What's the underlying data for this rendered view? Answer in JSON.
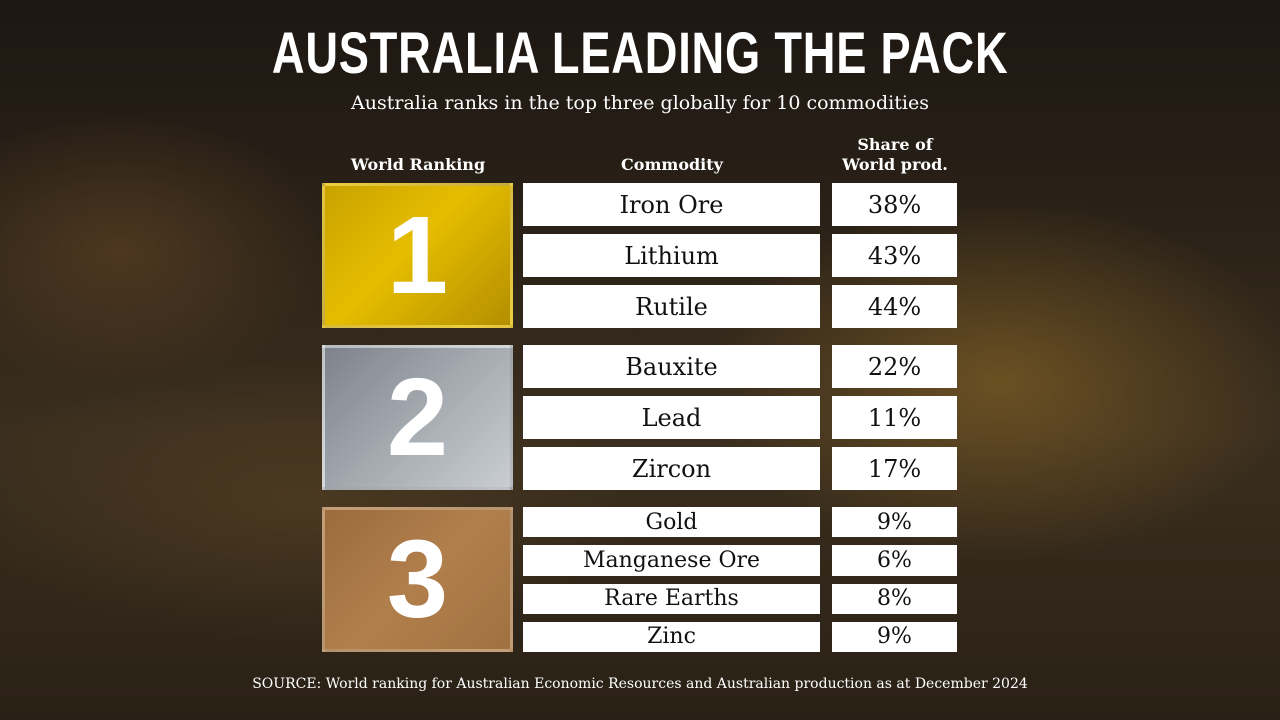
{
  "header": {
    "title": "AUSTRALIA LEADING THE PACK",
    "subtitle": "Australia ranks in the top three globally for 10 commodities"
  },
  "table": {
    "headers": [
      "World Ranking",
      "Commodity",
      "Share of World prod."
    ],
    "groups": [
      {
        "rank": "1",
        "rows": [
          [
            "Iron Ore",
            "38%"
          ],
          [
            "Lithium",
            "43%"
          ],
          [
            "Rutile",
            "44%"
          ]
        ]
      },
      {
        "rank": "2",
        "rows": [
          [
            "Bauxite",
            "22%"
          ],
          [
            "Lead",
            "11%"
          ],
          [
            "Zircon",
            "17%"
          ]
        ]
      },
      {
        "rank": "3",
        "rows": [
          [
            "Gold",
            "9%"
          ],
          [
            "Manganese Ore",
            "6%"
          ],
          [
            "Rare Earths",
            "8%"
          ],
          [
            "Zinc",
            "9%"
          ]
        ]
      }
    ]
  },
  "footer": {
    "source": "SOURCE: World ranking for Australian Economic Resources and Australian production as at December 2024"
  }
}
